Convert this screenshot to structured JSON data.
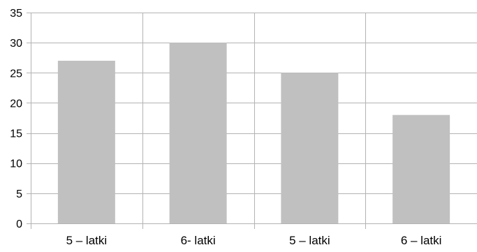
{
  "chart_data": {
    "type": "bar",
    "categories": [
      "5 – latki",
      "6- latki",
      "5 – latki",
      "6 – latki"
    ],
    "values": [
      27,
      30,
      25,
      18
    ],
    "ylim": [
      0,
      35
    ],
    "yticks": [
      0,
      5,
      10,
      15,
      20,
      25,
      30,
      35
    ],
    "grid": true,
    "legend": "none",
    "bar_color": "#c0c0c0",
    "grid_color": "#b3b3b3"
  }
}
